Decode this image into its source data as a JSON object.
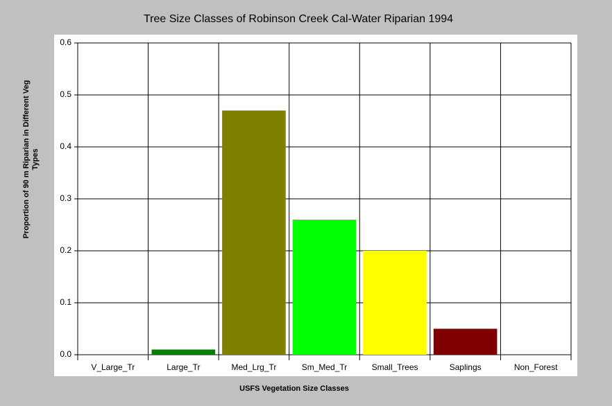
{
  "chart_data": {
    "type": "bar",
    "title": "Tree Size Classes of Robinson Creek Cal-Water Riparian 1994",
    "xlabel": "USFS Vegetation Size Classes",
    "ylabel": [
      "Proportion of 90 m Riparian in Different Veg",
      "Types"
    ],
    "categories": [
      "V_Large_Tr",
      "Large_Tr",
      "Med_Lrg_Tr",
      "Sm_Med_Tr",
      "Small_Trees",
      "Saplings",
      "Non_Forest"
    ],
    "values": [
      0,
      0.01,
      0.47,
      0.26,
      0.2,
      0.05,
      0
    ],
    "colors": [
      "#808080",
      "#008000",
      "#808000",
      "#00ff00",
      "#ffff00",
      "#800000",
      "#808080"
    ],
    "ylim": [
      0,
      0.6
    ],
    "yticks": [
      {
        "value": 0,
        "label": "0.0"
      },
      0.1,
      0.2,
      0.3,
      0.4,
      0.5,
      0.6
    ],
    "grid": true
  }
}
